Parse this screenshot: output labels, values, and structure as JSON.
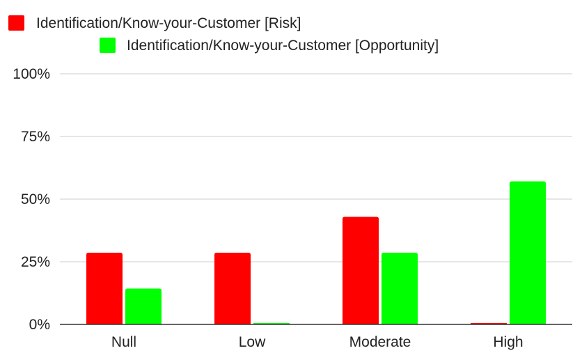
{
  "chart_data": {
    "type": "bar",
    "categories": [
      "Null",
      "Low",
      "Moderate",
      "High"
    ],
    "series": [
      {
        "name": "Identification/Know-your-Customer [Risk]",
        "color": "#ff0000",
        "values": [
          28.6,
          28.6,
          42.9,
          0
        ]
      },
      {
        "name": "Identification/Know-your-Customer [Opportunity]",
        "color": "#00ff00",
        "values": [
          14.3,
          0,
          28.6,
          57.1
        ]
      }
    ],
    "ylim": [
      0,
      100
    ],
    "yticks": [
      "0%",
      "25%",
      "50%",
      "75%",
      "100%"
    ],
    "ytick_values": [
      0,
      25,
      50,
      75,
      100
    ],
    "grid": true,
    "legend_position": "top"
  }
}
